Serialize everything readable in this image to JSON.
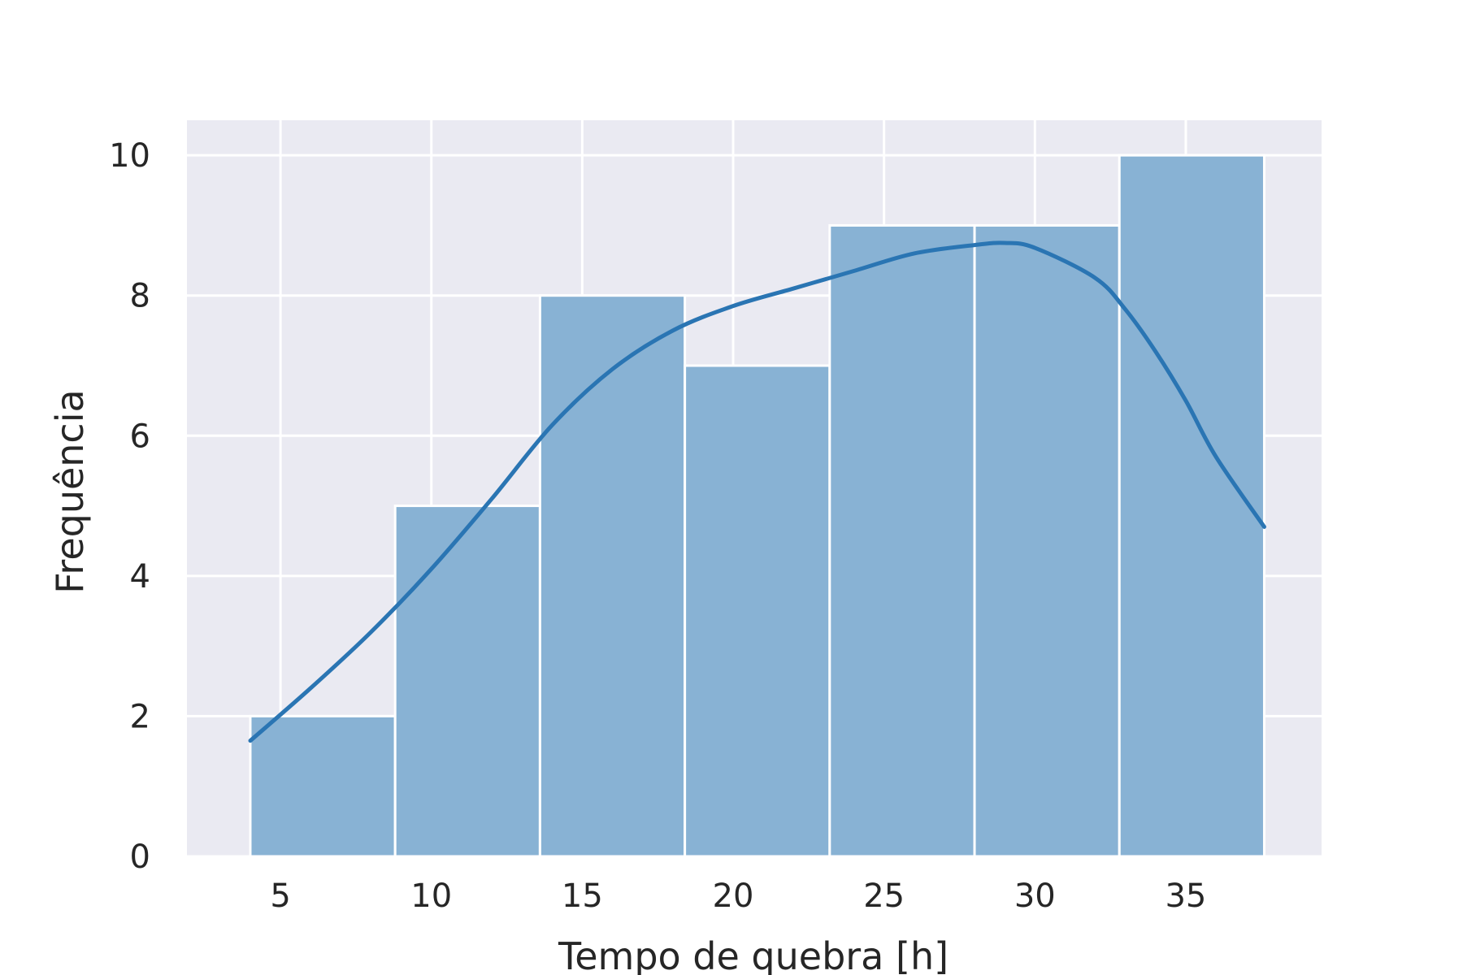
{
  "chart_data": {
    "type": "bar",
    "subtype": "histogram-with-kde",
    "title": "",
    "xlabel": "Tempo de quebra [h]",
    "ylabel": "Frequência",
    "xlim": [
      1.9,
      39.5
    ],
    "ylim": [
      0,
      10.5
    ],
    "x_ticks": [
      5,
      10,
      15,
      20,
      25,
      30,
      35
    ],
    "y_ticks": [
      0,
      2,
      4,
      6,
      8,
      10
    ],
    "grid": true,
    "legend": "none",
    "bins": [
      {
        "x_start": 4.0,
        "x_end": 8.8,
        "count": 2
      },
      {
        "x_start": 8.8,
        "x_end": 13.6,
        "count": 5
      },
      {
        "x_start": 13.6,
        "x_end": 18.4,
        "count": 8
      },
      {
        "x_start": 18.4,
        "x_end": 23.2,
        "count": 7
      },
      {
        "x_start": 23.2,
        "x_end": 28.0,
        "count": 9
      },
      {
        "x_start": 28.0,
        "x_end": 32.8,
        "count": 9
      },
      {
        "x_start": 32.8,
        "x_end": 37.6,
        "count": 10
      }
    ],
    "kde": {
      "x": [
        4.0,
        6.0,
        8.0,
        10.0,
        12.0,
        14.0,
        16.0,
        18.0,
        20.0,
        22.0,
        24.0,
        26.0,
        28.0,
        29.0,
        30.0,
        32.0,
        33.0,
        34.0,
        35.0,
        36.0,
        37.6
      ],
      "y": [
        1.65,
        2.4,
        3.2,
        4.1,
        5.1,
        6.15,
        6.95,
        7.5,
        7.85,
        8.1,
        8.35,
        8.6,
        8.72,
        8.75,
        8.68,
        8.25,
        7.8,
        7.2,
        6.5,
        5.7,
        4.7
      ]
    }
  },
  "colors": {
    "bar_fill": "#86b0d3",
    "bar_edge": "#ffffff",
    "kde_line": "#2a75b3",
    "plot_background": "#eaeaf2",
    "grid": "#ffffff"
  }
}
